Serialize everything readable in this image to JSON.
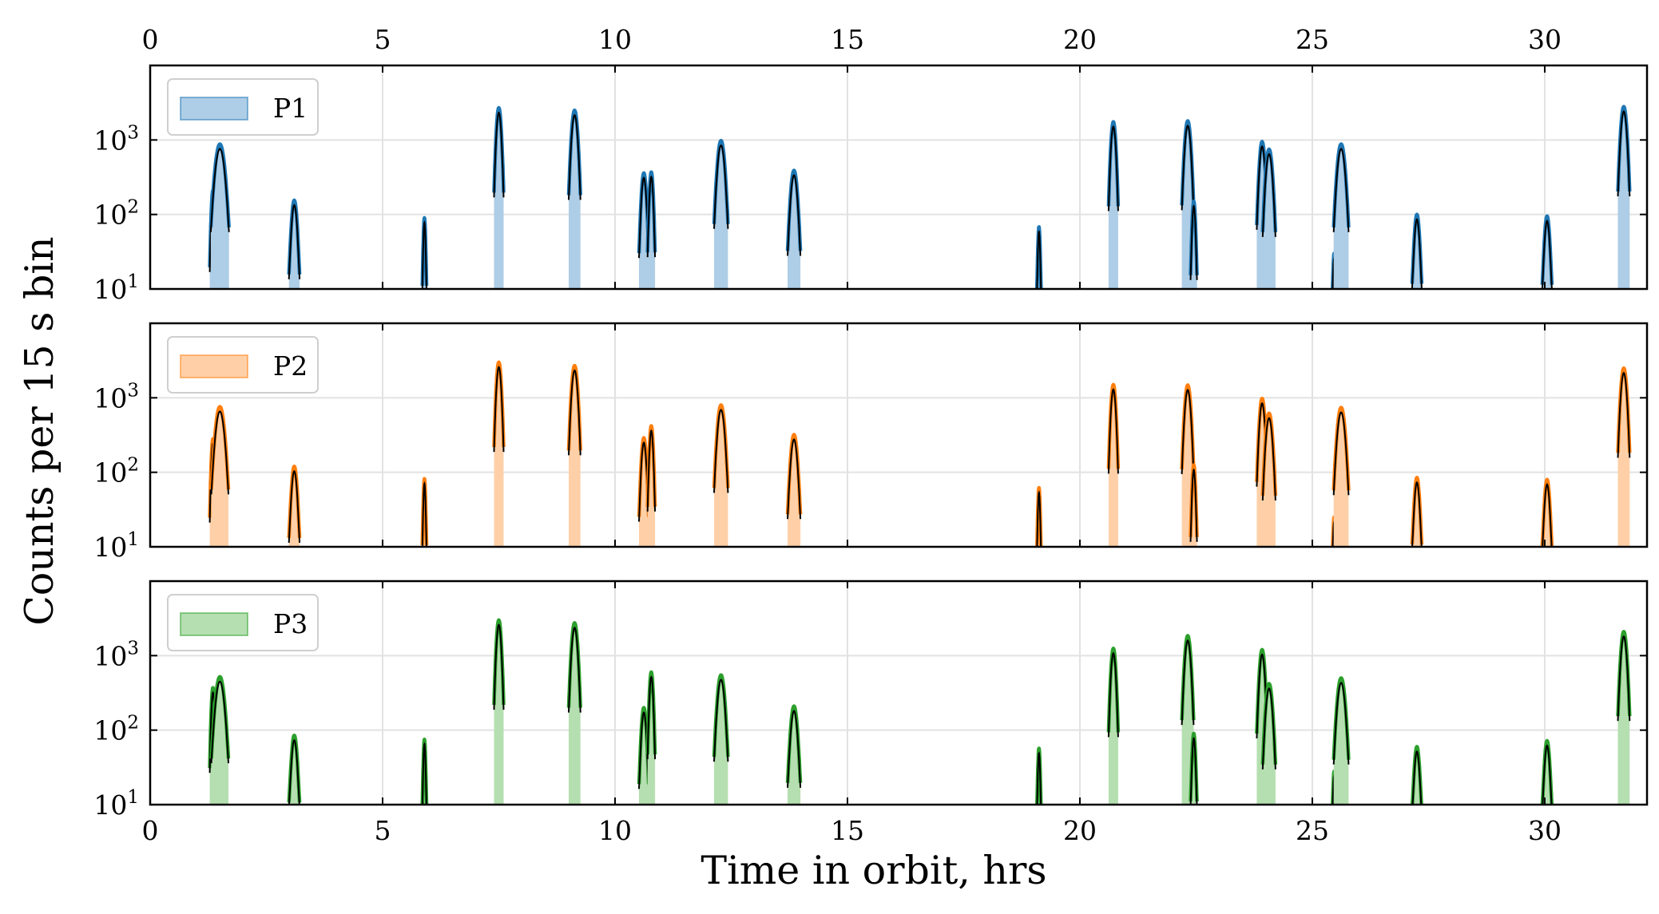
{
  "chart_data": {
    "type": "area",
    "xlabel": "Time in orbit, hrs",
    "ylabel": "Counts per 15 s bin",
    "xlim": [
      0,
      32.2
    ],
    "x_ticks": [
      0,
      5,
      10,
      15,
      20,
      25,
      30
    ],
    "x_tick_labels": [
      "0",
      "5",
      "10",
      "15",
      "20",
      "25",
      "30"
    ],
    "y_scale": "log",
    "ylim": [
      10,
      10000
    ],
    "y_ticks": [
      10,
      100,
      1000
    ],
    "y_tick_bases": [
      "10",
      "10",
      "10"
    ],
    "y_tick_exponents": [
      "1",
      "2",
      "3"
    ],
    "grid": true,
    "legend_position": "upper-left",
    "panels": [
      {
        "name": "P1",
        "legend_label": "P1",
        "color": "#1f77b4",
        "fill": "#aecde6",
        "peaks": [
          {
            "t": 1.35,
            "peak": 210,
            "w": 0.03
          },
          {
            "t": 1.5,
            "peak": 880,
            "w": 0.085
          },
          {
            "t": 3.1,
            "peak": 155,
            "w": 0.05
          },
          {
            "t": 5.9,
            "peak": 90,
            "w": 0.02
          },
          {
            "t": 7.5,
            "peak": 2700,
            "w": 0.045
          },
          {
            "t": 9.13,
            "peak": 2500,
            "w": 0.055
          },
          {
            "t": 10.62,
            "peak": 360,
            "w": 0.045
          },
          {
            "t": 10.78,
            "peak": 370,
            "w": 0.035
          },
          {
            "t": 12.28,
            "peak": 980,
            "w": 0.065
          },
          {
            "t": 13.85,
            "peak": 390,
            "w": 0.06
          },
          {
            "t": 19.12,
            "peak": 68,
            "w": 0.02
          },
          {
            "t": 20.72,
            "peak": 1750,
            "w": 0.045
          },
          {
            "t": 22.32,
            "peak": 1800,
            "w": 0.055
          },
          {
            "t": 22.45,
            "peak": 150,
            "w": 0.03
          },
          {
            "t": 23.92,
            "peak": 950,
            "w": 0.05
          },
          {
            "t": 24.07,
            "peak": 750,
            "w": 0.06
          },
          {
            "t": 25.47,
            "peak": 30,
            "w": 0.02
          },
          {
            "t": 25.62,
            "peak": 880,
            "w": 0.07
          },
          {
            "t": 27.25,
            "peak": 100,
            "w": 0.045
          },
          {
            "t": 30.05,
            "peak": 95,
            "w": 0.045
          },
          {
            "t": 31.7,
            "peak": 2800,
            "w": 0.055
          }
        ]
      },
      {
        "name": "P2",
        "legend_label": "P2",
        "color": "#ff7f0e",
        "fill": "#ffd0a8",
        "peaks": [
          {
            "t": 1.35,
            "peak": 280,
            "w": 0.03
          },
          {
            "t": 1.5,
            "peak": 760,
            "w": 0.08
          },
          {
            "t": 3.1,
            "peak": 120,
            "w": 0.05
          },
          {
            "t": 5.9,
            "peak": 82,
            "w": 0.02
          },
          {
            "t": 7.5,
            "peak": 3000,
            "w": 0.045
          },
          {
            "t": 9.13,
            "peak": 2700,
            "w": 0.055
          },
          {
            "t": 10.62,
            "peak": 290,
            "w": 0.045
          },
          {
            "t": 10.78,
            "peak": 420,
            "w": 0.035
          },
          {
            "t": 12.28,
            "peak": 800,
            "w": 0.065
          },
          {
            "t": 13.85,
            "peak": 320,
            "w": 0.06
          },
          {
            "t": 19.12,
            "peak": 62,
            "w": 0.02
          },
          {
            "t": 20.72,
            "peak": 1500,
            "w": 0.045
          },
          {
            "t": 22.32,
            "peak": 1480,
            "w": 0.055
          },
          {
            "t": 22.45,
            "peak": 125,
            "w": 0.03
          },
          {
            "t": 23.92,
            "peak": 980,
            "w": 0.05
          },
          {
            "t": 24.07,
            "peak": 620,
            "w": 0.06
          },
          {
            "t": 25.47,
            "peak": 25,
            "w": 0.02
          },
          {
            "t": 25.62,
            "peak": 740,
            "w": 0.07
          },
          {
            "t": 27.25,
            "peak": 85,
            "w": 0.045
          },
          {
            "t": 30.05,
            "peak": 80,
            "w": 0.045
          },
          {
            "t": 31.7,
            "peak": 2500,
            "w": 0.055
          }
        ]
      },
      {
        "name": "P3",
        "legend_label": "P3",
        "color": "#2ca02c",
        "fill": "#b5dfb0",
        "peaks": [
          {
            "t": 1.35,
            "peak": 370,
            "w": 0.03
          },
          {
            "t": 1.5,
            "peak": 520,
            "w": 0.08
          },
          {
            "t": 3.1,
            "peak": 85,
            "w": 0.05
          },
          {
            "t": 5.9,
            "peak": 75,
            "w": 0.02
          },
          {
            "t": 7.5,
            "peak": 3000,
            "w": 0.045
          },
          {
            "t": 9.13,
            "peak": 2750,
            "w": 0.055
          },
          {
            "t": 10.62,
            "peak": 200,
            "w": 0.045
          },
          {
            "t": 10.78,
            "peak": 600,
            "w": 0.035
          },
          {
            "t": 12.28,
            "peak": 550,
            "w": 0.065
          },
          {
            "t": 13.85,
            "peak": 210,
            "w": 0.06
          },
          {
            "t": 19.12,
            "peak": 57,
            "w": 0.02
          },
          {
            "t": 20.72,
            "peak": 1250,
            "w": 0.045
          },
          {
            "t": 22.32,
            "peak": 1850,
            "w": 0.055
          },
          {
            "t": 22.45,
            "peak": 90,
            "w": 0.03
          },
          {
            "t": 23.92,
            "peak": 1200,
            "w": 0.05
          },
          {
            "t": 24.07,
            "peak": 420,
            "w": 0.06
          },
          {
            "t": 25.47,
            "peak": 28,
            "w": 0.02
          },
          {
            "t": 25.62,
            "peak": 500,
            "w": 0.07
          },
          {
            "t": 27.25,
            "peak": 60,
            "w": 0.045
          },
          {
            "t": 30.05,
            "peak": 72,
            "w": 0.045
          },
          {
            "t": 31.7,
            "peak": 2100,
            "w": 0.055
          }
        ]
      }
    ]
  }
}
